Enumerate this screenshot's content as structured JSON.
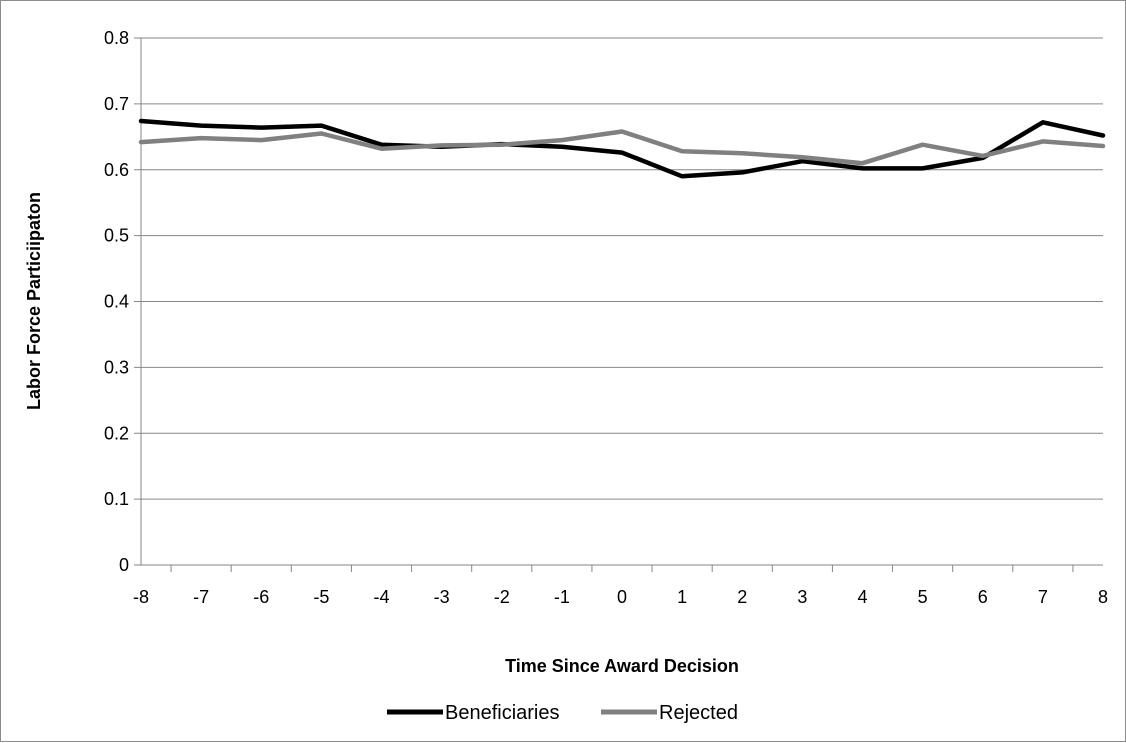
{
  "chart_data": {
    "type": "line",
    "title": "",
    "xlabel": "Time Since Award Decision",
    "ylabel": "Labor Force Particiipaton",
    "x": [
      -8,
      -7,
      -6,
      -5,
      -4,
      -3,
      -2,
      -1,
      0,
      1,
      2,
      3,
      4,
      5,
      6,
      7,
      8
    ],
    "x_tick_labels": [
      "-8",
      "-7",
      "-6",
      "-5",
      "-4",
      "-3",
      "-2",
      "-1",
      "0",
      "1",
      "2",
      "3",
      "4",
      "5",
      "6",
      "7",
      "8"
    ],
    "ylim": [
      0,
      0.8
    ],
    "y_ticks": [
      0,
      0.1,
      0.2,
      0.3,
      0.4,
      0.5,
      0.6,
      0.7,
      0.8
    ],
    "y_tick_labels": [
      "0",
      "0.1",
      "0.2",
      "0.3",
      "0.4",
      "0.5",
      "0.6",
      "0.7",
      "0.8"
    ],
    "grid": "horizontal",
    "legend_position": "bottom",
    "series": [
      {
        "name": "Beneficiaries",
        "color": "#000000",
        "values": [
          0.674,
          0.667,
          0.664,
          0.667,
          0.638,
          0.635,
          0.639,
          0.635,
          0.626,
          0.59,
          0.596,
          0.613,
          0.602,
          0.602,
          0.618,
          0.672,
          0.652
        ]
      },
      {
        "name": "Rejected",
        "color": "#808080",
        "values": [
          0.642,
          0.648,
          0.645,
          0.655,
          0.632,
          0.637,
          0.638,
          0.645,
          0.658,
          0.628,
          0.625,
          0.619,
          0.61,
          0.638,
          0.621,
          0.643,
          0.636
        ]
      }
    ]
  }
}
